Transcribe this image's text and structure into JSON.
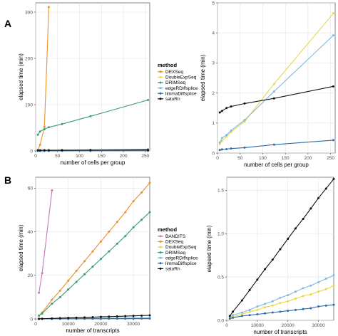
{
  "panel_letters": [
    "A",
    "B"
  ],
  "colors": {
    "BANDITS": "#c878b4",
    "DEXSeq": "#e8922a",
    "DoubleExpSeq": "#e6d84a",
    "DRIMSeq": "#3a9b78",
    "edgeRDiffsplice": "#7fb8e0",
    "limmaDiffsplice": "#2c6aa8",
    "satuRn": "#111111"
  },
  "legend_A": {
    "title": "method",
    "items": [
      "DEXSeq",
      "DoubleExpSeq",
      "DRIMSeq",
      "edgeRDiffsplice",
      "limmaDiffsplice",
      "satuRn"
    ]
  },
  "legend_B": {
    "title": "method",
    "items": [
      "BANDITS",
      "DEXSeq",
      "DoubleExpSeq",
      "DRIMSeq",
      "edgeRDiffsplice",
      "limmaDiffsplice",
      "satuRn"
    ]
  },
  "chart_data": [
    {
      "id": "A_left",
      "type": "line",
      "xlabel": "number of cells per group",
      "ylabel": "elapsed time (min)",
      "xlim": [
        0,
        260
      ],
      "ylim": [
        0,
        320
      ],
      "xticks": [
        0,
        50,
        100,
        150,
        200,
        250
      ],
      "yticks": [
        0,
        100,
        200,
        300
      ],
      "grid": true,
      "series": [
        {
          "name": "DEXSeq",
          "x": [
            5,
            10,
            20,
            30
          ],
          "y": [
            2,
            13,
            52,
            311
          ]
        },
        {
          "name": "DoubleExpSeq",
          "x": [
            5,
            10,
            20,
            30,
            60,
            125,
            256
          ],
          "y": [
            0.3,
            0.4,
            0.5,
            0.6,
            0.9,
            1.8,
            3.9
          ]
        },
        {
          "name": "DRIMSeq",
          "x": [
            5,
            10,
            20,
            30,
            60,
            125,
            256
          ],
          "y": [
            35,
            42,
            47,
            51,
            58,
            75,
            110
          ]
        },
        {
          "name": "edgeRDiffsplice",
          "x": [
            5,
            10,
            20,
            30,
            60,
            125,
            256
          ],
          "y": [
            0.3,
            0.4,
            0.5,
            0.6,
            0.9,
            2,
            3.9
          ]
        },
        {
          "name": "limmaDiffsplice",
          "x": [
            5,
            10,
            20,
            30,
            60,
            125,
            256
          ],
          "y": [
            0.1,
            0.12,
            0.13,
            0.15,
            0.18,
            0.28,
            0.42
          ]
        },
        {
          "name": "satuRn",
          "x": [
            5,
            10,
            20,
            30,
            60,
            125,
            256
          ],
          "y": [
            1.35,
            1.4,
            1.5,
            1.55,
            1.65,
            1.85,
            2.2
          ]
        }
      ]
    },
    {
      "id": "A_right",
      "type": "line",
      "xlabel": "number of cells per group",
      "ylabel": "elapsed time (min)",
      "xlim": [
        0,
        260
      ],
      "ylim": [
        0,
        5
      ],
      "xticks": [
        0,
        50,
        100,
        150,
        200,
        250
      ],
      "yticks": [
        0,
        1,
        2,
        3,
        4,
        5
      ],
      "grid": true,
      "series": [
        {
          "name": "DoubleExpSeq",
          "x": [
            5,
            10,
            20,
            30,
            60,
            125,
            256
          ],
          "y": [
            0.3,
            0.4,
            0.55,
            0.7,
            1.05,
            2.3,
            4.65
          ]
        },
        {
          "name": "edgeRDiffsplice",
          "x": [
            5,
            10,
            20,
            30,
            60,
            125,
            256
          ],
          "y": [
            0.35,
            0.5,
            0.6,
            0.75,
            1.1,
            2.05,
            3.92
          ]
        },
        {
          "name": "limmaDiffsplice",
          "x": [
            5,
            10,
            20,
            30,
            60,
            125,
            256
          ],
          "y": [
            0.1,
            0.12,
            0.13,
            0.15,
            0.18,
            0.28,
            0.43
          ]
        },
        {
          "name": "satuRn",
          "x": [
            5,
            10,
            20,
            30,
            60,
            125,
            256
          ],
          "y": [
            1.35,
            1.4,
            1.5,
            1.55,
            1.65,
            1.82,
            2.22
          ]
        }
      ]
    },
    {
      "id": "B_left",
      "type": "line",
      "xlabel": "number of transcripts",
      "ylabel": "elapsed time (min)",
      "xlim": [
        0,
        35000
      ],
      "ylim": [
        0,
        65
      ],
      "xticks": [
        0,
        10000,
        20000,
        30000
      ],
      "yticks": [
        0,
        20,
        40,
        60
      ],
      "grid": true,
      "series": [
        {
          "name": "BANDITS",
          "x": [
            1000,
            2000,
            5000
          ],
          "y": [
            12,
            21,
            59
          ]
        },
        {
          "name": "DEXSeq",
          "x": [
            1000,
            2000,
            5000,
            7500,
            10000,
            12500,
            15000,
            17500,
            20000,
            22500,
            25000,
            27500,
            30000,
            32500,
            35000
          ],
          "y": [
            1.5,
            3,
            8.8,
            13,
            17.5,
            22,
            26.5,
            31,
            35.5,
            40,
            44.5,
            49,
            54,
            58,
            62.5
          ]
        },
        {
          "name": "DoubleExpSeq",
          "x": [
            1000,
            2000,
            5000,
            7500,
            10000,
            12500,
            15000,
            17500,
            20000,
            22500,
            25000,
            27500,
            30000,
            32500,
            35000
          ],
          "y": [
            0.05,
            0.05,
            0.1,
            0.12,
            0.15,
            0.18,
            0.2,
            0.22,
            0.25,
            0.28,
            0.3,
            0.33,
            0.35,
            0.38,
            0.4
          ]
        },
        {
          "name": "DRIMSeq",
          "x": [
            1000,
            2000,
            5000,
            7500,
            10000,
            12500,
            15000,
            17500,
            20000,
            22500,
            25000,
            27500,
            30000,
            32500,
            35000
          ],
          "y": [
            1.5,
            2.5,
            7,
            10,
            13.5,
            17,
            20.5,
            24,
            27.5,
            31,
            34.5,
            38,
            42,
            45.5,
            49
          ]
        },
        {
          "name": "edgeRDiffsplice",
          "x": [
            1000,
            2000,
            5000,
            7500,
            10000,
            12500,
            15000,
            17500,
            20000,
            22500,
            25000,
            27500,
            30000,
            32500,
            35000
          ],
          "y": [
            0.05,
            0.06,
            0.1,
            0.13,
            0.16,
            0.19,
            0.22,
            0.26,
            0.3,
            0.33,
            0.37,
            0.4,
            0.44,
            0.48,
            0.52
          ]
        },
        {
          "name": "limmaDiffsplice",
          "x": [
            1000,
            2000,
            5000,
            7500,
            10000,
            12500,
            15000,
            17500,
            20000,
            22500,
            25000,
            27500,
            30000,
            32500,
            35000
          ],
          "y": [
            0.02,
            0.03,
            0.05,
            0.06,
            0.07,
            0.08,
            0.09,
            0.1,
            0.11,
            0.12,
            0.13,
            0.14,
            0.16,
            0.17,
            0.18
          ]
        },
        {
          "name": "satuRn",
          "x": [
            1000,
            2000,
            5000,
            7500,
            10000,
            12500,
            15000,
            17500,
            20000,
            22500,
            25000,
            27500,
            30000,
            32500,
            35000
          ],
          "y": [
            0.05,
            0.1,
            0.23,
            0.35,
            0.47,
            0.59,
            0.7,
            0.82,
            0.94,
            1.06,
            1.17,
            1.29,
            1.41,
            1.52,
            1.63
          ]
        }
      ]
    },
    {
      "id": "B_right",
      "type": "line",
      "xlabel": "number of transcripts",
      "ylabel": "elapsed time (min)",
      "xlim": [
        0,
        35000
      ],
      "ylim": [
        0,
        1.65
      ],
      "xticks": [
        0,
        10000,
        20000,
        30000
      ],
      "yticks": [
        0.0,
        0.5,
        1.0,
        1.5
      ],
      "grid": true,
      "series": [
        {
          "name": "DoubleExpSeq",
          "x": [
            1000,
            2000,
            5000,
            7500,
            10000,
            12500,
            15000,
            17500,
            20000,
            22500,
            25000,
            27500,
            30000,
            32500,
            35000
          ],
          "y": [
            0.03,
            0.04,
            0.07,
            0.1,
            0.12,
            0.15,
            0.17,
            0.2,
            0.22,
            0.25,
            0.28,
            0.3,
            0.33,
            0.36,
            0.4
          ]
        },
        {
          "name": "edgeRDiffsplice",
          "x": [
            1000,
            2000,
            5000,
            7500,
            10000,
            12500,
            15000,
            17500,
            20000,
            22500,
            25000,
            27500,
            30000,
            32500,
            35000
          ],
          "y": [
            0.04,
            0.06,
            0.09,
            0.12,
            0.16,
            0.19,
            0.22,
            0.26,
            0.29,
            0.33,
            0.37,
            0.4,
            0.44,
            0.48,
            0.52
          ]
        },
        {
          "name": "limmaDiffsplice",
          "x": [
            1000,
            2000,
            5000,
            7500,
            10000,
            12500,
            15000,
            17500,
            20000,
            22500,
            25000,
            27500,
            30000,
            32500,
            35000
          ],
          "y": [
            0.02,
            0.03,
            0.05,
            0.06,
            0.07,
            0.08,
            0.09,
            0.1,
            0.11,
            0.12,
            0.13,
            0.14,
            0.16,
            0.17,
            0.18
          ]
        },
        {
          "name": "satuRn",
          "x": [
            1000,
            2000,
            5000,
            7500,
            10000,
            12500,
            15000,
            17500,
            20000,
            22500,
            25000,
            27500,
            30000,
            32500,
            35000
          ],
          "y": [
            0.05,
            0.1,
            0.23,
            0.35,
            0.47,
            0.59,
            0.7,
            0.82,
            0.94,
            1.06,
            1.17,
            1.29,
            1.41,
            1.52,
            1.63
          ]
        }
      ]
    }
  ]
}
